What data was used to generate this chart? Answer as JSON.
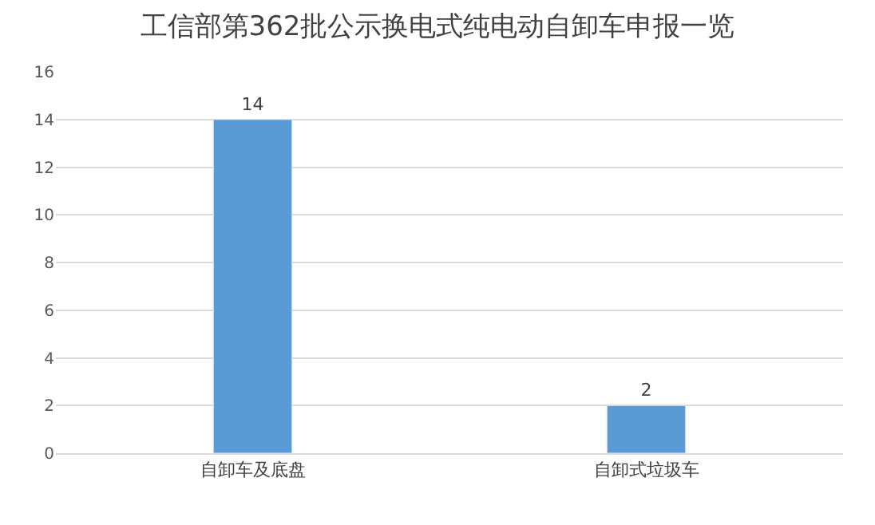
{
  "chart_data": {
    "type": "bar",
    "title": "工信部第362批公示换电式纯电动自卸车申报一览",
    "categories": [
      "自卸车及底盘",
      "自卸式垃圾车"
    ],
    "values": [
      14,
      2
    ],
    "color": "#5b9bd5",
    "ylim": [
      0,
      16
    ],
    "yticks": [
      0,
      2,
      4,
      6,
      8,
      10,
      12,
      14,
      16
    ],
    "grid": "y",
    "data_labels": true,
    "legend": false
  }
}
